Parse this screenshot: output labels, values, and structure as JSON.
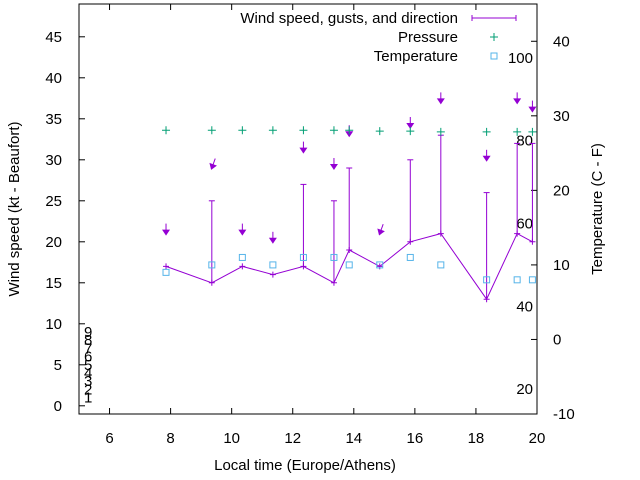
{
  "chart_data": {
    "type": "line",
    "xlabel": "Local time (Europe/Athens)",
    "ylabel_left": "Wind speed (kt - Beaufort)",
    "ylabel_right": "Temperature (C - F)",
    "xlim": [
      5,
      20
    ],
    "ylim_left": [
      -1,
      49
    ],
    "ylim_right": [
      -10,
      45
    ],
    "x_ticks": [
      "6",
      "8",
      "10",
      "12",
      "14",
      "16",
      "18",
      "20"
    ],
    "y_left_ticks": [
      "0",
      "5",
      "10",
      "15",
      "20",
      "25",
      "30",
      "35",
      "40",
      "45"
    ],
    "y_right_ticks": [
      "-10",
      "0",
      "10",
      "20",
      "30",
      "40"
    ],
    "beaufort_labels": [
      "1",
      "2",
      "3",
      "4",
      "5",
      "6",
      "7",
      "8",
      "9"
    ],
    "beaufort_speeds": [
      1,
      2,
      3,
      4,
      5,
      6,
      7,
      8,
      9
    ],
    "fahrenheit_labels": [
      "20",
      "40",
      "60",
      "80",
      "100"
    ],
    "fahrenheit_temps_c": [
      -6.67,
      4.44,
      15.56,
      26.67,
      37.78
    ],
    "legend": {
      "position": "top-right",
      "entries": [
        {
          "label": "Wind speed, gusts, and direction",
          "color": "#9400d3"
        },
        {
          "label": "Pressure",
          "color": "#009e73"
        },
        {
          "label": "Temperature",
          "color": "#56b4e9"
        }
      ]
    },
    "series": [
      {
        "name": "Wind speed, gusts, and direction",
        "color": "#9400d3",
        "x": [
          7.85,
          9.35,
          10.35,
          11.35,
          12.35,
          13.35,
          13.85,
          14.85,
          15.85,
          16.85,
          18.35,
          19.35,
          19.85
        ],
        "speed": [
          17,
          15,
          17,
          16,
          17,
          15,
          19,
          17,
          20,
          21,
          13,
          21,
          20
        ],
        "gust": [
          17,
          25,
          17,
          16,
          27,
          25,
          29,
          17,
          30,
          33,
          26,
          32,
          32
        ],
        "direction_marker_y": [
          21,
          29,
          21,
          20,
          31,
          29,
          33,
          21,
          34,
          37,
          30,
          37,
          36
        ],
        "direction_deg": [
          0,
          20,
          0,
          0,
          0,
          0,
          0,
          20,
          0,
          0,
          0,
          0,
          0
        ]
      },
      {
        "name": "Pressure",
        "color": "#009e73",
        "x": [
          7.85,
          9.35,
          10.35,
          11.35,
          12.35,
          13.35,
          13.85,
          14.85,
          15.85,
          16.85,
          18.35,
          19.35,
          19.85
        ],
        "y": [
          33.6,
          33.6,
          33.6,
          33.6,
          33.6,
          33.6,
          33.6,
          33.5,
          33.5,
          33.4,
          33.4,
          33.4,
          33.4
        ]
      },
      {
        "name": "Temperature",
        "color": "#56b4e9",
        "x": [
          7.85,
          9.35,
          10.35,
          11.35,
          12.35,
          13.35,
          13.85,
          14.85,
          15.85,
          16.85,
          18.35,
          19.35,
          19.85
        ],
        "y": [
          9,
          10,
          11,
          10,
          11,
          11,
          10,
          10,
          11,
          10,
          8,
          8,
          8
        ]
      }
    ]
  }
}
